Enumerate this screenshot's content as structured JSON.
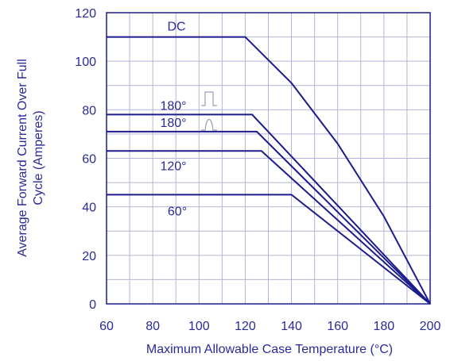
{
  "chart_data": {
    "type": "line",
    "title": "",
    "xlabel": "Maximum Allowable Case Temperature (°C)",
    "ylabel_lines": [
      "Average Forward Current Over Full",
      "Cycle (Amperes)"
    ],
    "xlim": [
      60,
      200
    ],
    "ylim": [
      0,
      120
    ],
    "x_ticks": [
      60,
      80,
      100,
      120,
      140,
      160,
      180,
      200
    ],
    "y_ticks": [
      0,
      20,
      40,
      60,
      80,
      100,
      120
    ],
    "grid": true,
    "series": [
      {
        "name": "DC",
        "points": [
          [
            60,
            110
          ],
          [
            120,
            110
          ],
          [
            140,
            91
          ],
          [
            160,
            66
          ],
          [
            180,
            36
          ],
          [
            200,
            0
          ]
        ]
      },
      {
        "name": "180° (square wave)",
        "label": "180°",
        "points": [
          [
            60,
            78
          ],
          [
            123,
            78
          ],
          [
            200,
            0
          ]
        ]
      },
      {
        "name": "180° (sine wave)",
        "label": "180°",
        "points": [
          [
            60,
            71
          ],
          [
            125,
            71
          ],
          [
            200,
            0
          ]
        ]
      },
      {
        "name": "120°",
        "label": "120°",
        "points": [
          [
            60,
            63
          ],
          [
            127,
            63
          ],
          [
            200,
            0
          ]
        ]
      },
      {
        "name": "60°",
        "label": "60°",
        "points": [
          [
            60,
            45
          ],
          [
            140,
            45
          ],
          [
            200,
            0
          ]
        ]
      }
    ]
  },
  "colors": {
    "line": "#1c1c8c",
    "text": "#2a2a9a",
    "grid": "#b4b4d8"
  }
}
